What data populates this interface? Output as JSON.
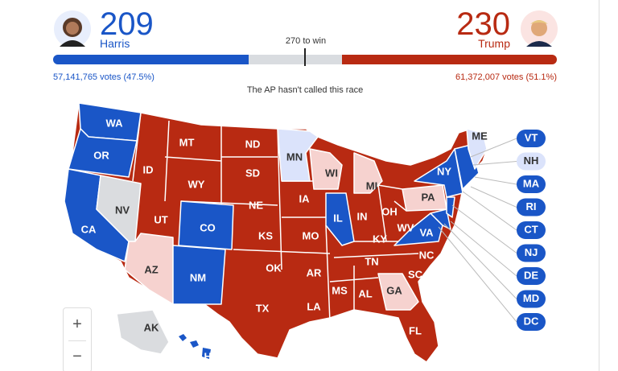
{
  "header": {
    "left": {
      "electoral_votes": 209,
      "name": "Harris",
      "votes": "57,141,765 votes (47.5%)"
    },
    "right": {
      "electoral_votes": 230,
      "name": "Trump",
      "votes": "61,372,007 votes (51.1%)"
    },
    "threshold": "270 to win",
    "status": "The AP hasn't called this race"
  },
  "states": [
    "WA",
    "OR",
    "CA",
    "NV",
    "ID",
    "MT",
    "WY",
    "UT",
    "CO",
    "AZ",
    "NM",
    "ND",
    "SD",
    "NE",
    "KS",
    "OK",
    "TX",
    "MN",
    "IA",
    "MO",
    "AR",
    "LA",
    "WI",
    "IL",
    "MI",
    "IN",
    "OH",
    "KY",
    "TN",
    "MS",
    "AL",
    "GA",
    "FL",
    "SC",
    "NC",
    "VA",
    "WV",
    "PA",
    "NY",
    "ME",
    "AK",
    "HI"
  ],
  "callouts": [
    "VT",
    "NH",
    "MA",
    "RI",
    "CT",
    "NJ",
    "DE",
    "MD",
    "DC"
  ],
  "zoom": {
    "in": "+",
    "out": "−"
  }
}
